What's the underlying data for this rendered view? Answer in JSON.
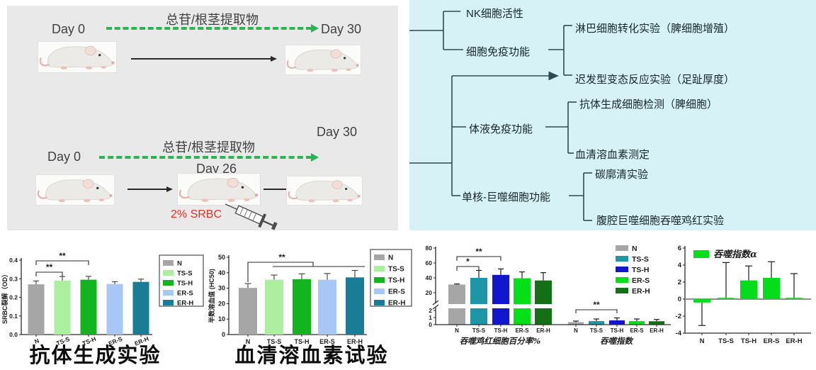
{
  "design": {
    "bg": "#e9e9e9",
    "treatment_arrow_color": "#2eb353",
    "srbc_color": "#e03226",
    "top": {
      "start": "Day 0",
      "end": "Day 30",
      "treatment": "总苷/根茎提取物"
    },
    "bottom": {
      "start": "Day 0",
      "mid": "Day 26",
      "end": "Day 30",
      "treatment": "总苷/根茎提取物",
      "injection": "2% SRBC"
    }
  },
  "flowchart": {
    "bg": "#d7f2f6",
    "line_color": "#2c4a52",
    "items": {
      "nk": "NK细胞活性",
      "cellular": "细胞免疫功能",
      "lymphocyte": "淋巴细胞转化实验（脾细胞增殖）",
      "dth": "迟发型变态反应实验（足趾厚度）",
      "humoral": "体液免疫功能",
      "antibody_cell": "抗体生成细胞检测（脾细胞）",
      "hemolysin": "血清溶血素测定",
      "mono": "单核-巨噬细胞功能",
      "carbon": "碳廓清实验",
      "macrophage": "腹腔巨噬细胞吞噬鸡红实验"
    }
  },
  "chart_data": [
    {
      "type": "bar",
      "title": "抗体生成实验",
      "ylabel": "SRBC裂解（OD）",
      "categories": [
        "N",
        "TS-S",
        "TS-H",
        "ER-S",
        "ER-H"
      ],
      "values": [
        0.27,
        0.29,
        0.295,
        0.272,
        0.283
      ],
      "errors": [
        0.018,
        0.022,
        0.018,
        0.012,
        0.015
      ],
      "ylim": [
        0,
        0.4
      ],
      "yticks": [
        0.0,
        0.1,
        0.2,
        0.3,
        0.4
      ],
      "legend": [
        "N",
        "TS-S",
        "TS-H",
        "ER-S",
        "ER-H"
      ],
      "legend_position": "right",
      "colors": [
        "#a6a6a6",
        "#abef9f",
        "#13b41f",
        "#a7c7f4",
        "#1b7c96"
      ],
      "significance": [
        {
          "from": 0,
          "to": 1,
          "label": "**"
        },
        {
          "from": 0,
          "to": 2,
          "label": "**"
        }
      ]
    },
    {
      "type": "bar",
      "title": "血清溶血素试验",
      "ylabel": "半数溶血值 (HC50)",
      "categories": [
        "N",
        "TS-S",
        "TS-H",
        "ER-S",
        "ER-H"
      ],
      "values": [
        30.2,
        35.5,
        35.8,
        35.5,
        37
      ],
      "errors": [
        2.8,
        3,
        3.5,
        4,
        4.5
      ],
      "ylim": [
        0,
        50
      ],
      "yticks": [
        0,
        10,
        20,
        30,
        40,
        50
      ],
      "legend": [
        "N",
        "TS-S",
        "TS-H",
        "ER-S",
        "ER-H"
      ],
      "legend_position": "right",
      "colors": [
        "#a6a6a6",
        "#abef9f",
        "#13b41f",
        "#a7c7f4",
        "#1b7c96"
      ],
      "significance": [
        {
          "from": 0,
          "to": 4,
          "label": "**"
        }
      ]
    },
    {
      "type": "bar",
      "broken_axis": true,
      "title": "",
      "categories": [
        "N",
        "TS-S",
        "TS-H",
        "ER-S",
        "ER-H"
      ],
      "groups": [
        {
          "label": "吞噬鸡红细胞百分率%",
          "values": [
            31,
            40,
            44,
            39.5,
            36.5
          ],
          "errors": [
            0.8,
            10,
            8,
            8.5,
            10.5
          ]
        },
        {
          "label": "吞噬指数",
          "values": [
            0.35,
            0.5,
            0.6,
            0.5,
            0.48
          ],
          "errors": [
            0.15,
            0.3,
            0.35,
            0.3,
            0.25
          ]
        }
      ],
      "ylim_lower": [
        0,
        2
      ],
      "yticks_lower": [
        0,
        1,
        2
      ],
      "ylim_upper": [
        20,
        80
      ],
      "yticks_upper": [
        20,
        40,
        60,
        80
      ],
      "legend": [
        "N",
        "TS-S",
        "TS-H",
        "ER-S",
        "ER-H"
      ],
      "legend_position": "right",
      "colors": [
        "#a6a6a6",
        "#1f96a8",
        "#1216cc",
        "#04e018",
        "#156f17"
      ],
      "significance": [
        {
          "group": 0,
          "from": 0,
          "to": 1,
          "label": "*"
        },
        {
          "group": 0,
          "from": 0,
          "to": 2,
          "label": "**"
        },
        {
          "group": 1,
          "from": 0,
          "to": 2,
          "label": "**"
        }
      ]
    },
    {
      "type": "bar",
      "title": "",
      "legend_label": "吞噬指数α",
      "categories": [
        "N",
        "TS-S",
        "TS-H",
        "ER-S",
        "ER-H"
      ],
      "values": [
        -0.4,
        0.15,
        2.2,
        2.5,
        0.15
      ],
      "errors_signed": [
        -2.7,
        4.15,
        1.7,
        1.9,
        2.85
      ],
      "ylim": [
        -4,
        6
      ],
      "yticks": [
        -4,
        -2,
        0,
        2,
        4,
        6
      ],
      "color": "#04dd1c"
    }
  ]
}
